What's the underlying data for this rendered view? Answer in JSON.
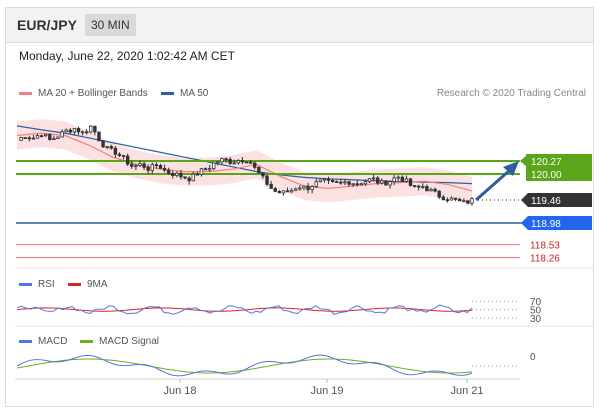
{
  "header": {
    "pair": "EUR/JPY",
    "interval": "30 MIN"
  },
  "datetime": "Monday, June 22, 2020 1:02:42 AM CET",
  "credit": "Research © 2020 Trading Central",
  "colors": {
    "ma20": "#f08080",
    "ma50": "#2b5f9e",
    "resistance": "#5aa51a",
    "support": "#2b5f9e",
    "target": "#e85a5a",
    "rsi": "#5577dd",
    "rsi_ma": "#dd2222",
    "macd": "#5577dd",
    "macd_signal": "#6ab020",
    "arrow": "#2b5f9e"
  },
  "legend_main": [
    {
      "name": "MA 20 + Bollinger Bands",
      "color": "#f08080"
    },
    {
      "name": "MA 50",
      "color": "#2b5f9e"
    }
  ],
  "legend_rsi": [
    {
      "name": "RSI",
      "color": "#5577dd"
    },
    {
      "name": "9MA",
      "color": "#dd2222"
    }
  ],
  "legend_macd": [
    {
      "name": "MACD",
      "color": "#5577dd"
    },
    {
      "name": "MACD Signal",
      "color": "#6ab020"
    }
  ],
  "price_levels": [
    {
      "label": "120.27",
      "value": 120.27,
      "kind": "resistance"
    },
    {
      "label": "120.00",
      "value": 120.0,
      "kind": "resistance"
    },
    {
      "label": "119.46",
      "value": 119.46,
      "kind": "current"
    },
    {
      "label": "118.98",
      "value": 118.98,
      "kind": "pivot"
    },
    {
      "label": "118.53",
      "value": 118.53,
      "kind": "target"
    },
    {
      "label": "118.26",
      "value": 118.26,
      "kind": "target"
    }
  ],
  "rsi_levels": [
    "70",
    "50",
    "30"
  ],
  "macd_level": "0",
  "chart_data": {
    "type": "line",
    "x_labels": [
      "Jun 18",
      "Jun 19",
      "Jun 21"
    ],
    "ylim": [
      118.1,
      121.3
    ],
    "price_path": [
      120.7,
      120.8,
      120.75,
      120.85,
      120.7,
      120.8,
      120.9,
      120.95,
      120.85,
      121.0,
      120.7,
      120.5,
      120.45,
      120.3,
      120.15,
      120.2,
      120.1,
      120.2,
      120.05,
      120.0,
      119.95,
      119.9,
      120.05,
      120.1,
      120.25,
      120.3,
      120.25,
      120.3,
      120.3,
      120.05,
      119.85,
      119.65,
      119.6,
      119.65,
      119.75,
      119.7,
      119.8,
      119.85,
      119.8,
      119.8,
      119.85,
      119.8,
      119.85,
      119.9,
      119.8,
      119.85,
      119.95,
      119.85,
      119.7,
      119.75,
      119.65,
      119.55,
      119.5,
      119.45,
      119.4,
      119.45
    ],
    "series": [
      {
        "name": "MA 50",
        "values": [
          121.0,
          120.92,
          120.85,
          120.75,
          120.65,
          120.55,
          120.45,
          120.35,
          120.25,
          120.15,
          120.05,
          119.98,
          119.93,
          119.9,
          119.88,
          119.86,
          119.84,
          119.83,
          119.82,
          119.8
        ]
      },
      {
        "name": "MA 20 + Bollinger Bands",
        "values": [
          120.8,
          120.85,
          120.8,
          120.6,
          120.35,
          120.2,
          120.1,
          120.05,
          120.05,
          120.1,
          120.2,
          119.95,
          119.75,
          119.7,
          119.75,
          119.8,
          119.82,
          119.85,
          119.78,
          119.65
        ]
      }
    ]
  }
}
